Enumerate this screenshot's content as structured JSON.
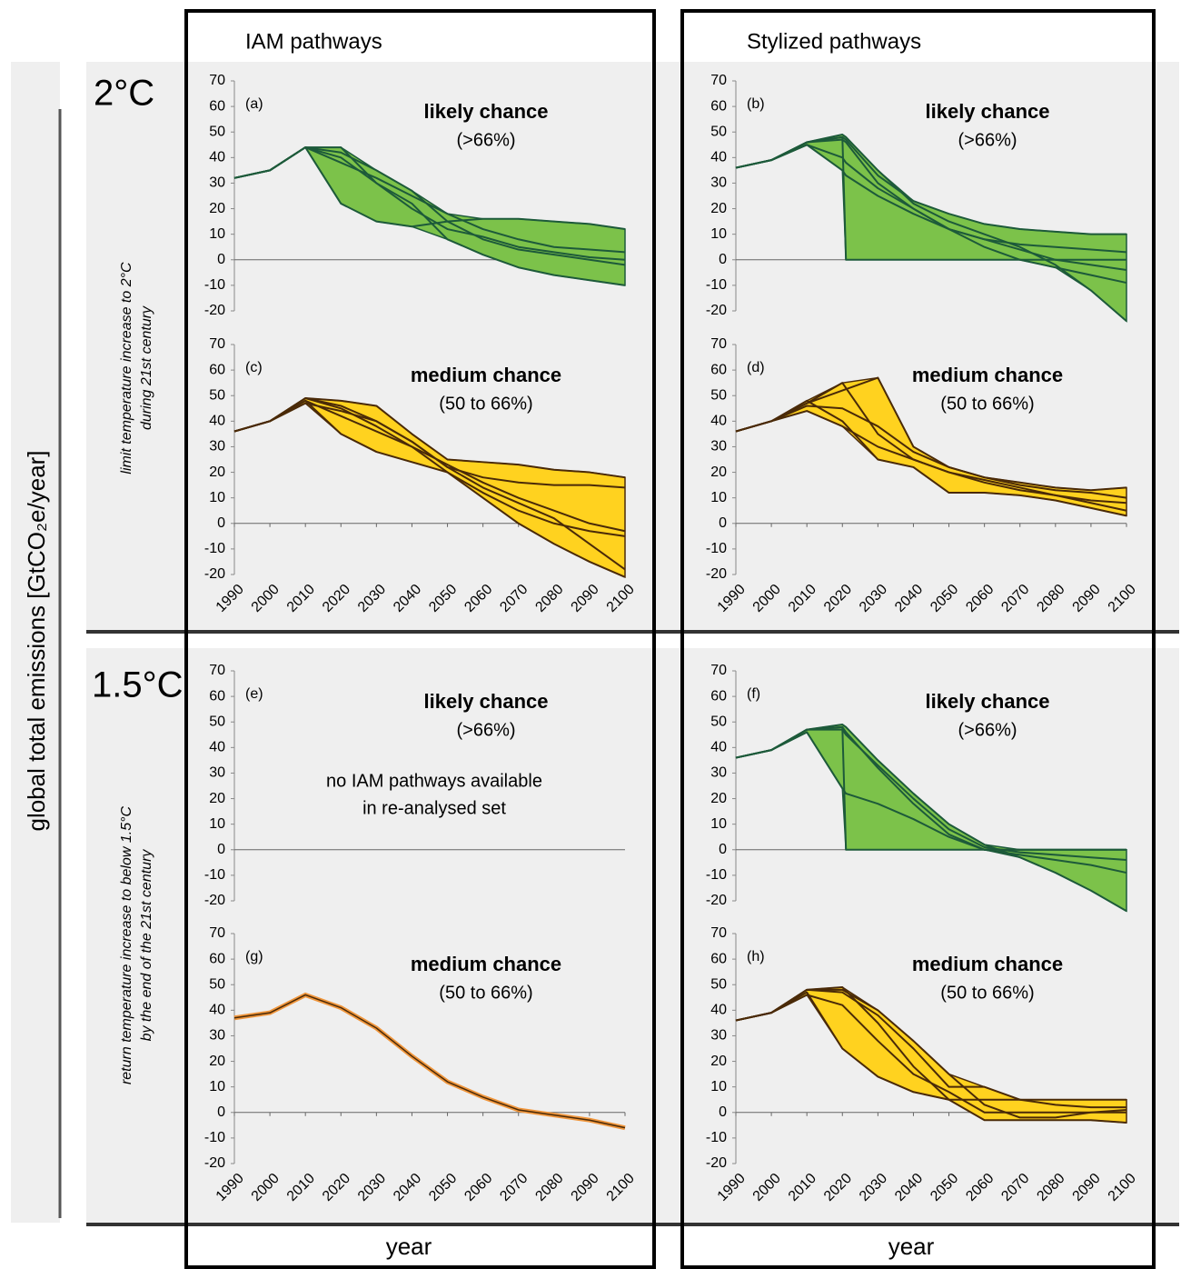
{
  "y_label": "global total emissions [GtCO₂e/year]",
  "x_label": "year",
  "columns": [
    "IAM pathways",
    "Stylized pathways"
  ],
  "rows": [
    {
      "label": "2°C",
      "description": [
        "limit temperature increase to 2°C",
        "during 21st century"
      ]
    },
    {
      "label": "1.5°C",
      "description": [
        "return temperature increase to below 1.5°C",
        "by the end of the 21st century"
      ]
    }
  ],
  "chart_data": [
    {
      "type": "line",
      "panel": "(a)",
      "title": "likely chance",
      "subtitle": "(>66%)",
      "color": "#1d5a3a",
      "fill": "#7cc24a",
      "ylim": [
        -20,
        70
      ],
      "yticks": [
        -20,
        -10,
        0,
        10,
        20,
        30,
        40,
        50,
        60,
        70
      ],
      "xlim": [
        1990,
        2100
      ],
      "x": [
        1990,
        2000,
        2010,
        2020,
        2030,
        2040,
        2050,
        2060,
        2070,
        2080,
        2090,
        2100
      ],
      "series": [
        {
          "values": [
            32,
            35,
            44,
            44,
            30,
            20,
            12,
            9,
            5,
            3,
            1,
            0
          ]
        },
        {
          "values": [
            32,
            35,
            44,
            22,
            15,
            13,
            15,
            16,
            16,
            15,
            14,
            12
          ]
        },
        {
          "values": [
            32,
            35,
            44,
            38,
            32,
            25,
            18,
            12,
            8,
            5,
            4,
            3
          ]
        },
        {
          "values": [
            32,
            35,
            44,
            40,
            30,
            22,
            8,
            2,
            -3,
            -6,
            -8,
            -10
          ]
        },
        {
          "values": [
            32,
            35,
            44,
            42,
            35,
            27,
            15,
            8,
            4,
            2,
            0,
            -2
          ]
        }
      ]
    },
    {
      "type": "line",
      "panel": "(b)",
      "title": "likely chance",
      "subtitle": "(>66%)",
      "color": "#1d5a3a",
      "fill": "#7cc24a",
      "ylim": [
        -20,
        70
      ],
      "yticks": [
        -20,
        -10,
        0,
        10,
        20,
        30,
        40,
        50,
        60,
        70
      ],
      "xlim": [
        1990,
        2100
      ],
      "x": [
        1990,
        2000,
        2010,
        2020,
        2021,
        2030,
        2040,
        2050,
        2060,
        2070,
        2080,
        2090,
        2100
      ],
      "series": [
        {
          "values": [
            36,
            39,
            46,
            48,
            0,
            0,
            0,
            0,
            0,
            0,
            0,
            0,
            0
          ]
        },
        {
          "values": [
            36,
            39,
            46,
            49,
            48,
            35,
            22,
            15,
            10,
            5,
            -2,
            -12,
            -24
          ]
        },
        {
          "values": [
            36,
            39,
            46,
            48,
            47,
            33,
            23,
            18,
            14,
            12,
            11,
            10,
            10
          ]
        },
        {
          "values": [
            36,
            39,
            45,
            40,
            38,
            28,
            20,
            12,
            5,
            0,
            -3,
            -6,
            -9
          ]
        },
        {
          "values": [
            36,
            39,
            46,
            47,
            46,
            30,
            20,
            12,
            8,
            6,
            5,
            4,
            3
          ]
        },
        {
          "values": [
            36,
            39,
            45,
            35,
            33,
            25,
            18,
            12,
            8,
            4,
            0,
            -2,
            -4
          ]
        }
      ]
    },
    {
      "type": "line",
      "panel": "(c)",
      "title": "medium chance",
      "subtitle": "(50 to 66%)",
      "color": "#4a2a08",
      "fill": "#ffd21f",
      "ylim": [
        -20,
        70
      ],
      "yticks": [
        -20,
        -10,
        0,
        10,
        20,
        30,
        40,
        50,
        60,
        70
      ],
      "xlim": [
        1990,
        2100
      ],
      "xticks": [
        1990,
        2000,
        2010,
        2020,
        2030,
        2040,
        2050,
        2060,
        2070,
        2080,
        2090,
        2100
      ],
      "x": [
        1990,
        2000,
        2010,
        2020,
        2030,
        2040,
        2050,
        2060,
        2070,
        2080,
        2090,
        2100
      ],
      "series": [
        {
          "values": [
            36,
            40,
            49,
            45,
            38,
            30,
            20,
            10,
            0,
            -8,
            -15,
            -21
          ]
        },
        {
          "values": [
            36,
            40,
            49,
            48,
            46,
            35,
            25,
            24,
            23,
            21,
            20,
            18
          ]
        },
        {
          "values": [
            36,
            40,
            48,
            35,
            28,
            24,
            20,
            12,
            5,
            0,
            -3,
            -5
          ]
        },
        {
          "values": [
            36,
            40,
            47,
            44,
            40,
            32,
            22,
            18,
            16,
            15,
            15,
            14
          ]
        },
        {
          "values": [
            36,
            40,
            48,
            42,
            36,
            30,
            23,
            16,
            10,
            5,
            0,
            -3
          ]
        },
        {
          "values": [
            36,
            40,
            49,
            46,
            40,
            32,
            22,
            14,
            8,
            2,
            -8,
            -18
          ]
        }
      ]
    },
    {
      "type": "line",
      "panel": "(d)",
      "title": "medium chance",
      "subtitle": "(50 to 66%)",
      "color": "#4a2a08",
      "fill": "#ffd21f",
      "ylim": [
        -20,
        70
      ],
      "yticks": [
        -20,
        -10,
        0,
        10,
        20,
        30,
        40,
        50,
        60,
        70
      ],
      "xlim": [
        1990,
        2100
      ],
      "xticks": [
        1990,
        2000,
        2010,
        2020,
        2030,
        2040,
        2050,
        2060,
        2070,
        2080,
        2090,
        2100
      ],
      "x": [
        1990,
        2000,
        2010,
        2020,
        2030,
        2040,
        2050,
        2060,
        2070,
        2080,
        2090,
        2100
      ],
      "series": [
        {
          "values": [
            36,
            40,
            47,
            55,
            35,
            25,
            20,
            17,
            14,
            11,
            8,
            5
          ]
        },
        {
          "values": [
            36,
            40,
            48,
            40,
            25,
            22,
            12,
            12,
            11,
            9,
            6,
            3
          ]
        },
        {
          "values": [
            36,
            40,
            47,
            52,
            57,
            30,
            22,
            18,
            16,
            14,
            13,
            14
          ]
        },
        {
          "values": [
            36,
            40,
            46,
            45,
            38,
            28,
            22,
            18,
            15,
            13,
            12,
            10
          ]
        },
        {
          "values": [
            36,
            40,
            44,
            38,
            30,
            25,
            20,
            16,
            13,
            11,
            9,
            8
          ]
        }
      ]
    },
    {
      "type": "line",
      "panel": "(e)",
      "title": "likely chance",
      "subtitle": "(>66%)",
      "color": "#1d5a3a",
      "fill": "#7cc24a",
      "annotation": [
        "no IAM pathways available",
        "in re-analysed set"
      ],
      "ylim": [
        -20,
        70
      ],
      "yticks": [
        -20,
        -10,
        0,
        10,
        20,
        30,
        40,
        50,
        60,
        70
      ],
      "xlim": [
        1990,
        2100
      ],
      "x": [],
      "series": []
    },
    {
      "type": "line",
      "panel": "(f)",
      "title": "likely chance",
      "subtitle": "(>66%)",
      "color": "#1d5a3a",
      "fill": "#7cc24a",
      "ylim": [
        -20,
        70
      ],
      "yticks": [
        -20,
        -10,
        0,
        10,
        20,
        30,
        40,
        50,
        60,
        70
      ],
      "xlim": [
        1990,
        2100
      ],
      "x": [
        1990,
        2000,
        2010,
        2020,
        2021,
        2030,
        2040,
        2050,
        2060,
        2070,
        2080,
        2090,
        2100
      ],
      "series": [
        {
          "values": [
            36,
            39,
            47,
            48,
            0,
            0,
            0,
            0,
            0,
            0,
            0,
            0,
            0
          ]
        },
        {
          "values": [
            36,
            39,
            47,
            49,
            48,
            35,
            22,
            10,
            2,
            -3,
            -9,
            -16,
            -24
          ]
        },
        {
          "values": [
            36,
            39,
            47,
            48,
            46,
            32,
            18,
            6,
            0,
            -2,
            -4,
            -6,
            -9
          ]
        },
        {
          "values": [
            36,
            39,
            46,
            24,
            22,
            18,
            12,
            5,
            0,
            0,
            0,
            0,
            0
          ]
        },
        {
          "values": [
            36,
            39,
            47,
            47,
            45,
            33,
            20,
            8,
            1,
            -1,
            -2,
            -3,
            -4
          ]
        }
      ]
    },
    {
      "type": "line",
      "panel": "(g)",
      "title": "medium chance",
      "subtitle": "(50 to 66%)",
      "color": "#4a2a08",
      "fill": "#f0963c",
      "ylim": [
        -20,
        70
      ],
      "yticks": [
        -20,
        -10,
        0,
        10,
        20,
        30,
        40,
        50,
        60,
        70
      ],
      "xlim": [
        1990,
        2100
      ],
      "xticks": [
        1990,
        2000,
        2010,
        2020,
        2030,
        2040,
        2050,
        2060,
        2070,
        2080,
        2090,
        2100
      ],
      "x": [
        1990,
        2000,
        2010,
        2020,
        2030,
        2040,
        2050,
        2060,
        2070,
        2080,
        2090,
        2100
      ],
      "series": [
        {
          "values": [
            37,
            39,
            46,
            41,
            33,
            22,
            12,
            6,
            1,
            -1,
            -3,
            -6
          ]
        }
      ]
    },
    {
      "type": "line",
      "panel": "(h)",
      "title": "medium chance",
      "subtitle": "(50 to 66%)",
      "color": "#4a2a08",
      "fill": "#ffd21f",
      "ylim": [
        -20,
        70
      ],
      "yticks": [
        -20,
        -10,
        0,
        10,
        20,
        30,
        40,
        50,
        60,
        70
      ],
      "xlim": [
        1990,
        2100
      ],
      "xticks": [
        1990,
        2000,
        2010,
        2020,
        2030,
        2040,
        2050,
        2060,
        2070,
        2080,
        2090,
        2100
      ],
      "x": [
        1990,
        2000,
        2010,
        2020,
        2030,
        2040,
        2050,
        2060,
        2070,
        2080,
        2090,
        2100
      ],
      "series": [
        {
          "values": [
            36,
            39,
            48,
            49,
            35,
            18,
            5,
            -3,
            -3,
            -3,
            -3,
            -4
          ]
        },
        {
          "values": [
            36,
            39,
            47,
            25,
            14,
            8,
            5,
            5,
            5,
            5,
            5,
            5
          ]
        },
        {
          "values": [
            36,
            39,
            48,
            47,
            38,
            25,
            10,
            10,
            5,
            3,
            2,
            2
          ]
        },
        {
          "values": [
            36,
            39,
            46,
            42,
            28,
            15,
            8,
            0,
            0,
            0,
            0,
            0
          ]
        },
        {
          "values": [
            36,
            39,
            48,
            48,
            40,
            28,
            15,
            3,
            -2,
            -2,
            0,
            1
          ]
        }
      ]
    }
  ]
}
